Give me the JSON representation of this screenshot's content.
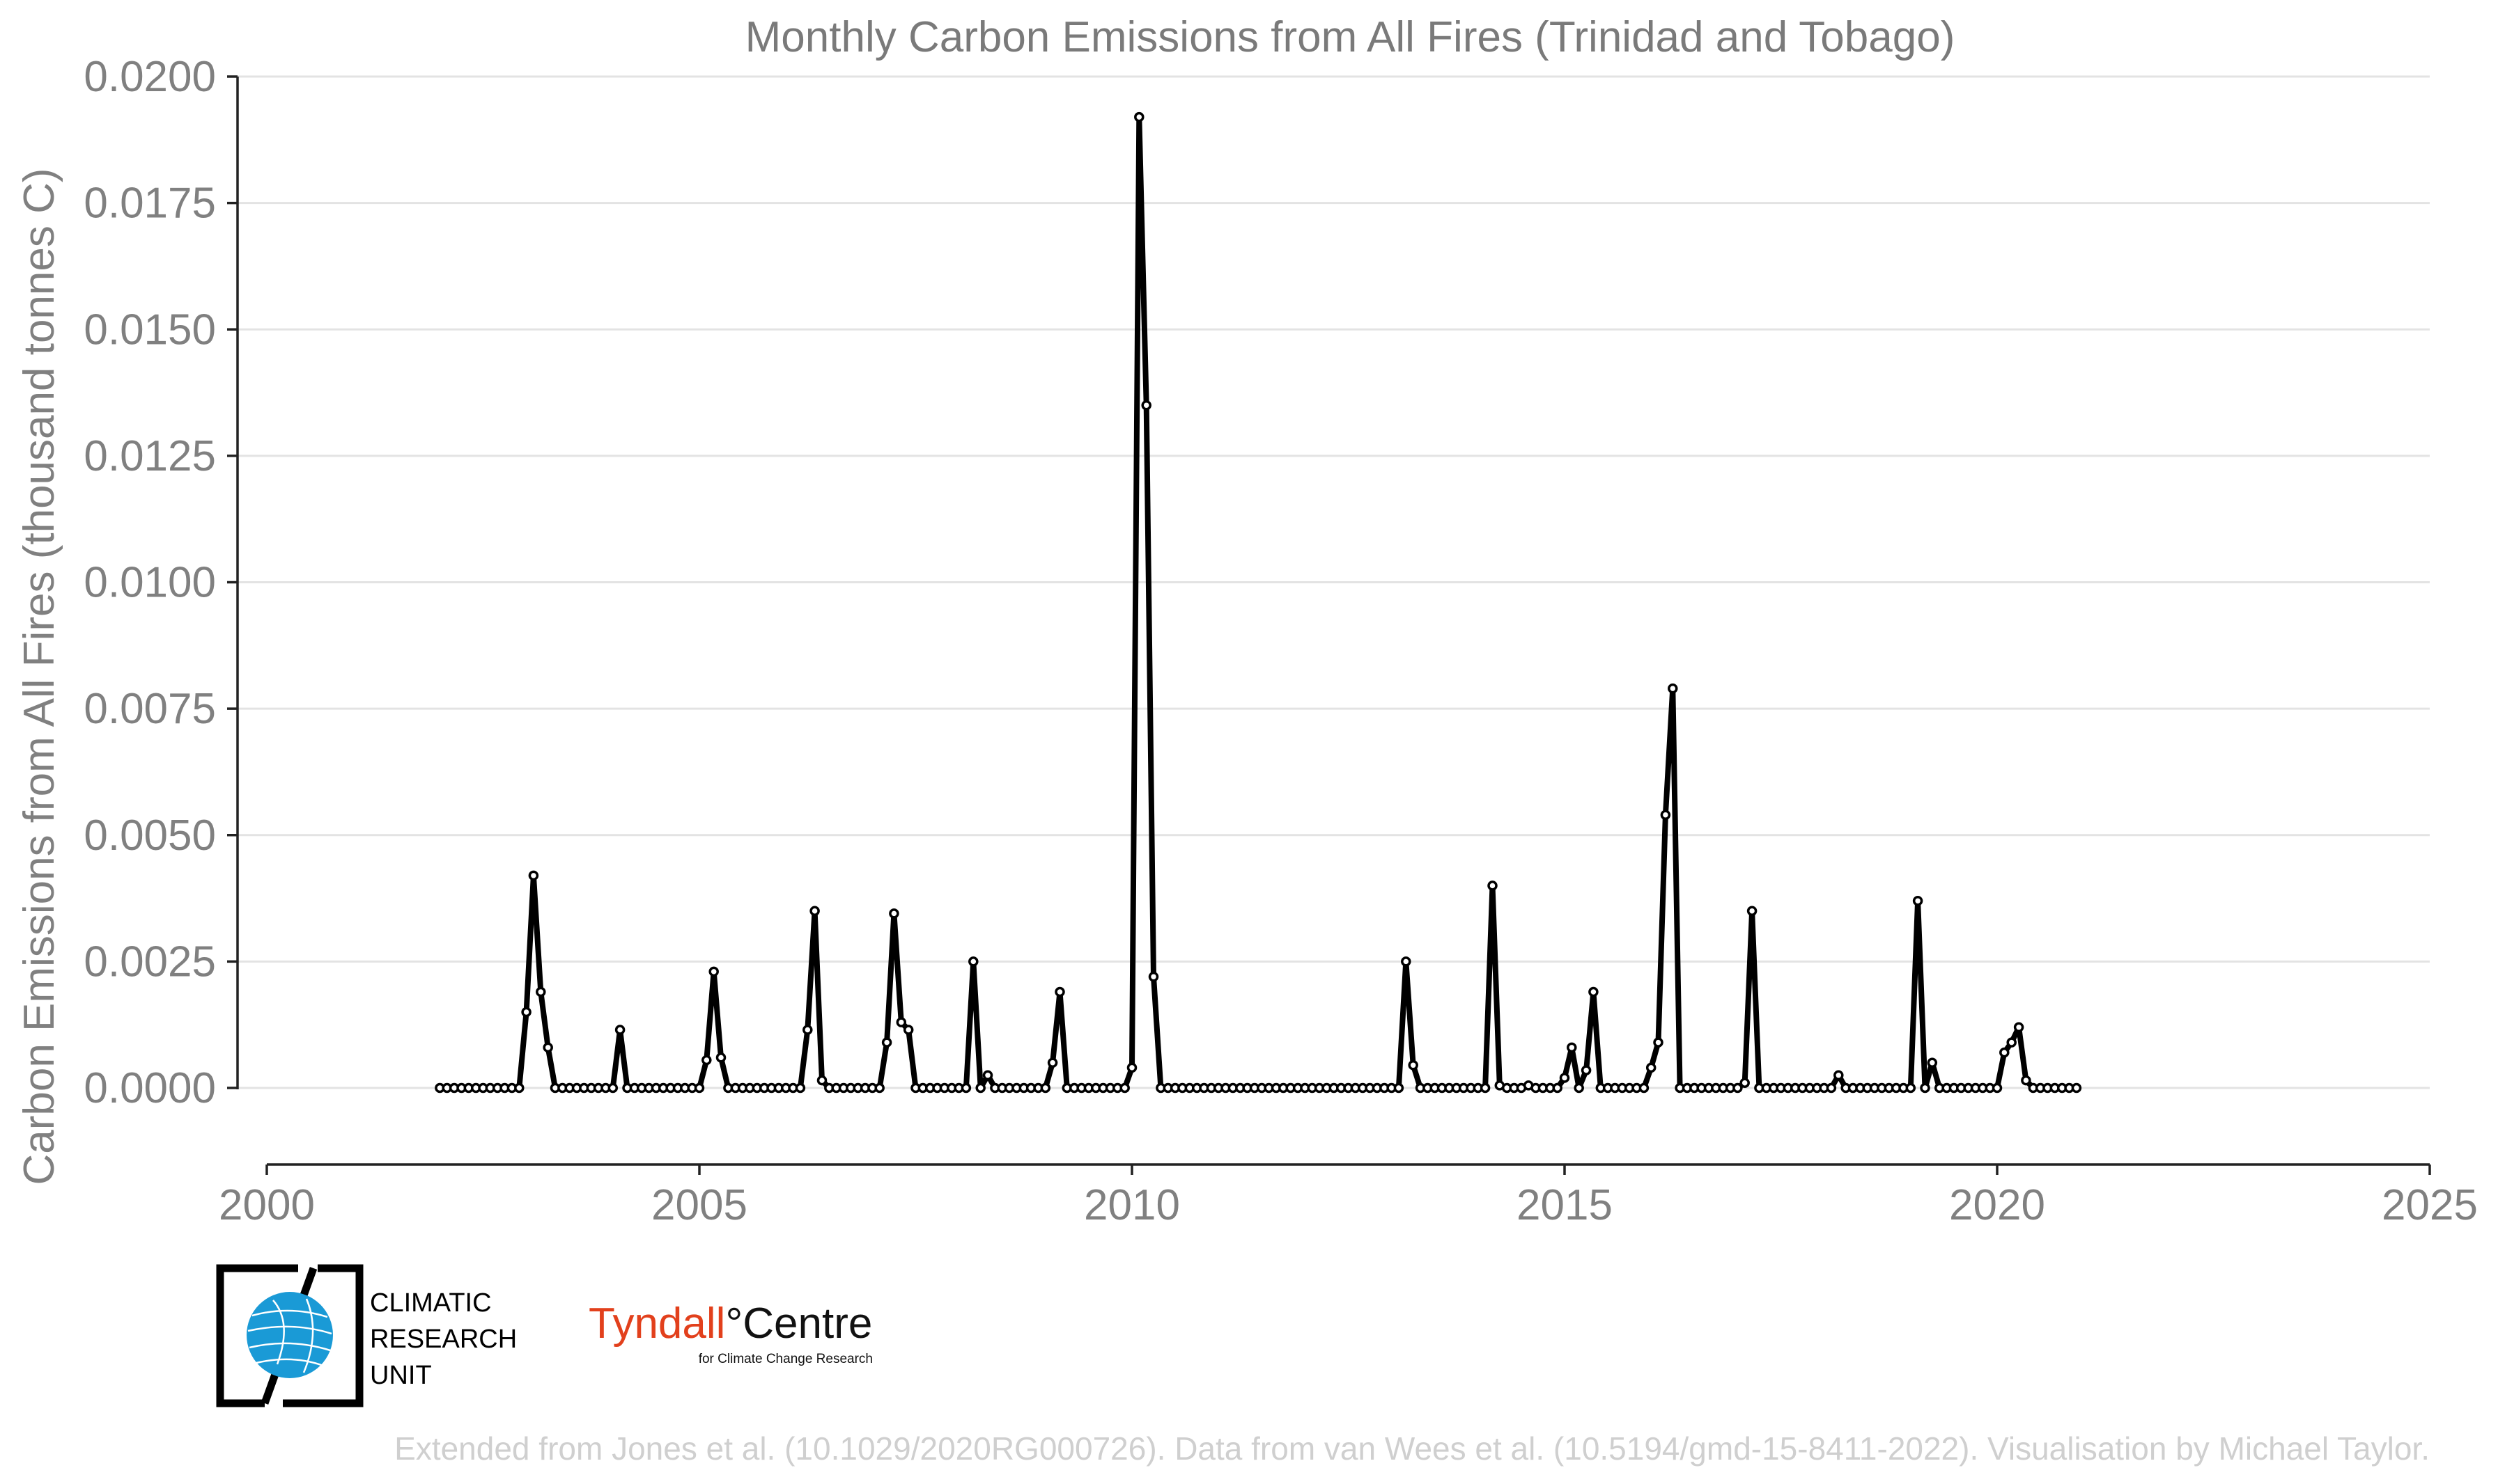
{
  "credits": "Extended from Jones et al. (10.1029/2020RG000726). Data from van Wees et al. (10.5194/gmd-15-8411-2022). Visualisation by Michael Taylor.",
  "logos": {
    "cru": {
      "lines": [
        "CLIMATIC",
        "RESEARCH",
        "UNIT"
      ],
      "globe_color": "#1a9ad6"
    },
    "tyndall": {
      "name_red": "Tyndall",
      "degree": "°",
      "name_black": "Centre",
      "subtitle": "for Climate Change Research",
      "brand_color": "#e2401c"
    }
  },
  "chart_data": {
    "type": "line",
    "title": "Monthly Carbon Emissions from All Fires (Trinidad and Tobago)",
    "xlabel": "",
    "ylabel": "Carbon Emissions from All Fires (thousand tonnes C)",
    "xlim": [
      2000,
      2025
    ],
    "ylim": [
      -0.0015,
      0.02
    ],
    "xticks": [
      2000,
      2005,
      2010,
      2015,
      2020,
      2025
    ],
    "yticks": [
      "0.0000",
      "0.0025",
      "0.0050",
      "0.0075",
      "0.0100",
      "0.0125",
      "0.0150",
      "0.0175",
      "0.0200"
    ],
    "grid": "horizontal",
    "x_start": "2002-01",
    "frequency": "monthly",
    "series": [
      {
        "color": "#000000",
        "marker": "open-circle",
        "values": [
          0,
          0,
          0,
          0,
          0,
          0,
          0,
          0,
          0,
          0,
          0,
          0,
          0.0015,
          0.0042,
          0.0019,
          0.0008,
          0,
          0,
          0,
          0,
          0,
          0,
          0,
          0,
          0,
          0.00115,
          0,
          0,
          0,
          0,
          0,
          0,
          0,
          0,
          0,
          0,
          0,
          0.00055,
          0.0023,
          0.0006,
          0,
          0,
          0,
          0,
          0,
          0,
          0,
          0,
          0,
          0,
          0,
          0.00115,
          0.0035,
          0.00015,
          0,
          0,
          0,
          0,
          0,
          0,
          0,
          0,
          0.0009,
          0.00345,
          0.0013,
          0.00115,
          0,
          0,
          0,
          0,
          0,
          0,
          0,
          0,
          0.0025,
          0,
          0.00025,
          0,
          0,
          0,
          0,
          0,
          0,
          0,
          0,
          0.0005,
          0.0019,
          0,
          0,
          0,
          0,
          0,
          0,
          0,
          0,
          0,
          0.0004,
          0.0192,
          0.0135,
          0.0022,
          0,
          0,
          0,
          0,
          0,
          0,
          0,
          0,
          0,
          0,
          0,
          0,
          0,
          0,
          0,
          0,
          0,
          0,
          0,
          0,
          0,
          0,
          0,
          0,
          0,
          0,
          0,
          0,
          0,
          0,
          0,
          0,
          0,
          0,
          0.0025,
          0.00045,
          0,
          0,
          0,
          0,
          0,
          0,
          0,
          0,
          0,
          0,
          0.004,
          5e-05,
          0,
          0,
          0,
          5e-05,
          0,
          0,
          0,
          0,
          0.0002,
          0.0008,
          0,
          0.00035,
          0.0019,
          0,
          0,
          0,
          0,
          0,
          0,
          0,
          0.0004,
          0.0009,
          0.0054,
          0.0079,
          0,
          0,
          0,
          0,
          0,
          0,
          0,
          0,
          0,
          0.0001,
          0.0035,
          0,
          0,
          0,
          0,
          0,
          0,
          0,
          0,
          0,
          0,
          0,
          0.00025,
          0,
          0,
          0,
          0,
          0,
          0,
          0,
          0,
          0,
          0,
          0.0037,
          0,
          0.0005,
          0,
          0,
          0,
          0,
          0,
          0,
          0,
          0,
          0,
          0.0007,
          0.0009,
          0.0012,
          0.00015,
          0,
          0,
          0,
          0,
          0,
          0,
          0
        ]
      }
    ]
  }
}
